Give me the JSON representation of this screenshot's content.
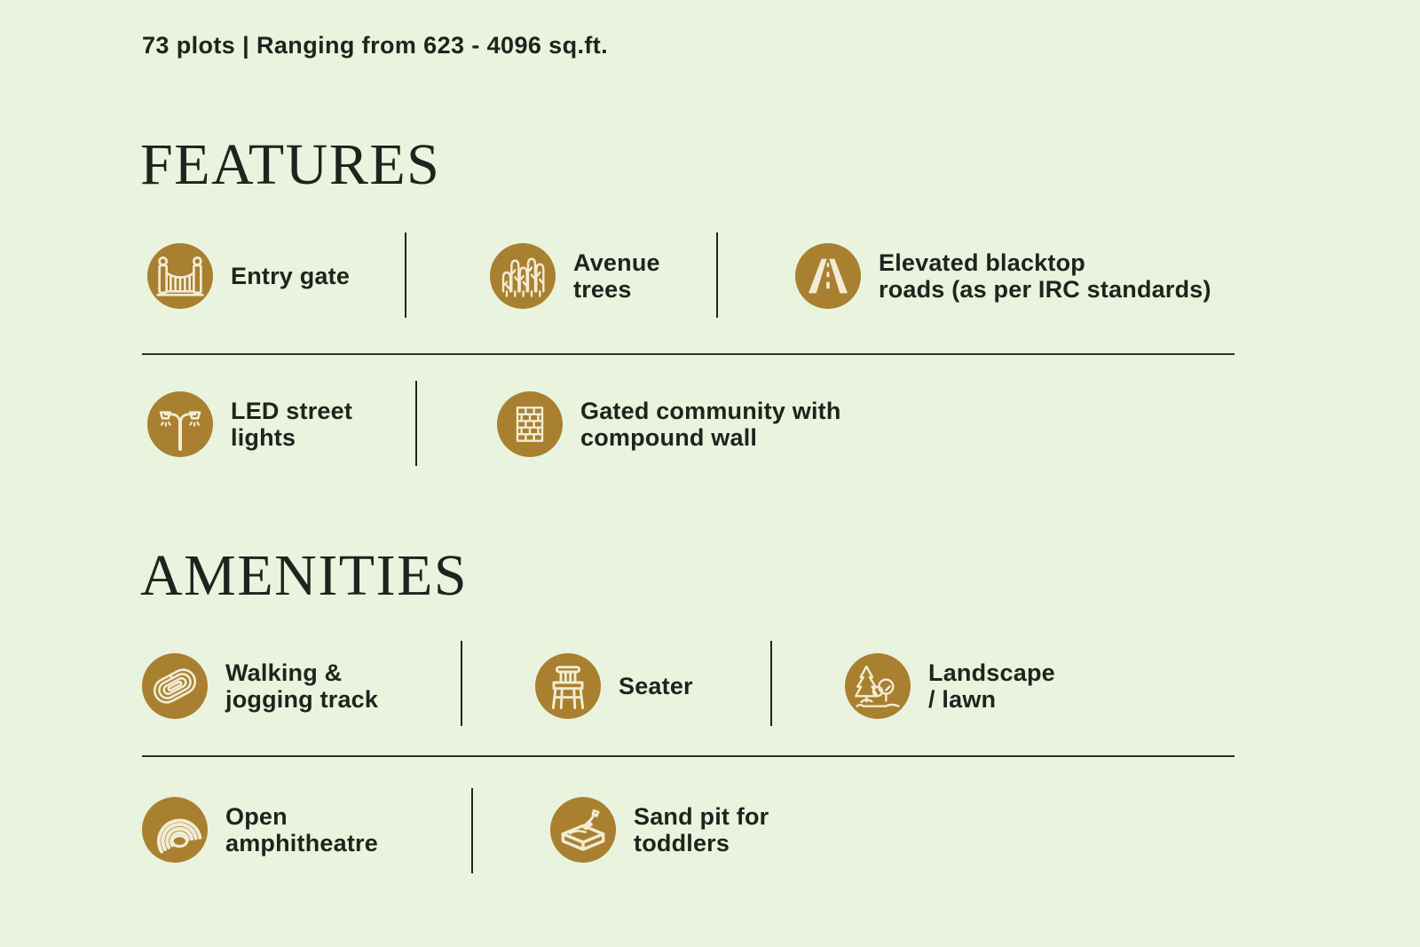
{
  "palette": {
    "background": "#e9f3de",
    "accent_gold": "#a8802f",
    "icon_stroke": "#f2ecd4",
    "text": "#20231d"
  },
  "header": {
    "stats_line": "73 plots | Ranging from 623 - 4096 sq.ft."
  },
  "sections": [
    {
      "title": "FEATURES",
      "rows": [
        {
          "items": [
            {
              "icon": "entry-gate-icon",
              "label": "Entry gate"
            },
            {
              "icon": "avenue-trees-icon",
              "label": "Avenue\ntrees"
            },
            {
              "icon": "elevated-road-icon",
              "label": "Elevated blacktop\nroads (as per IRC standards)"
            }
          ]
        },
        {
          "items": [
            {
              "icon": "led-street-light-icon",
              "label": "LED street\nlights"
            },
            {
              "icon": "compound-wall-icon",
              "label": "Gated community with\ncompound wall"
            }
          ]
        }
      ]
    },
    {
      "title": "AMENITIES",
      "rows": [
        {
          "items": [
            {
              "icon": "jogging-track-icon",
              "label": "Walking &\njogging track"
            },
            {
              "icon": "seater-icon",
              "label": "Seater"
            },
            {
              "icon": "landscape-lawn-icon",
              "label": "Landscape\n/ lawn"
            }
          ]
        },
        {
          "items": [
            {
              "icon": "amphitheatre-icon",
              "label": "Open\namphitheatre"
            },
            {
              "icon": "sand-pit-icon",
              "label": "Sand pit for\ntoddlers"
            }
          ]
        }
      ]
    }
  ]
}
